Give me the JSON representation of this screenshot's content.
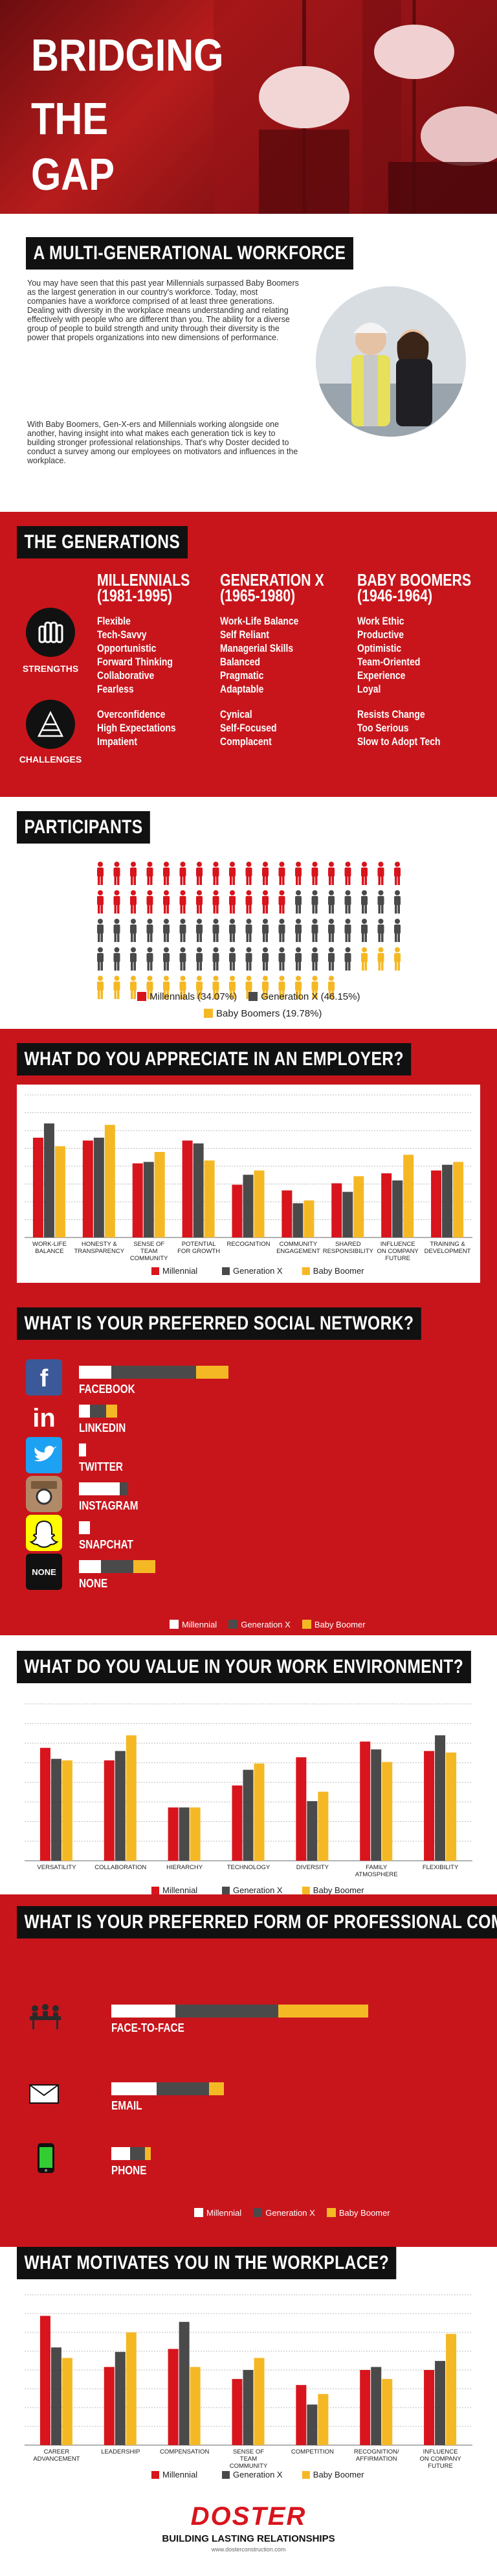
{
  "hero": {
    "title_lines": [
      "BRIDGING",
      "THE",
      "GAP"
    ]
  },
  "intro": {
    "heading": "A MULTI-GENERATIONAL WORKFORCE",
    "p1": "You may have seen that this past year Millennials surpassed Baby Boomers as the largest generation in our country's workforce. Today, most companies have a workforce comprised of at least three generations. Dealing with diversity in the workplace means understanding and relating effectively with people who are different than you. The ability for a diverse group of people to build strength and unity through their diversity is the power that propels organizations into new dimensions of performance.",
    "p2": "With Baby Boomers, Gen-X-ers and Millennials working alongside one another, having insight into what makes each generation tick is key to building stronger professional relationships. That's why Doster decided to conduct a survey among our employees on motivators and influences in the workplace."
  },
  "generations": {
    "heading": "THE GENERATIONS",
    "strengths_label": "STRENGTHS",
    "challenges_label": "CHALLENGES",
    "columns": [
      {
        "name": "MILLENNIALS",
        "years": "(1981-1995)",
        "strengths": [
          "Flexible",
          "Tech-Savvy",
          "Opportunistic",
          "Forward Thinking",
          "Collaborative",
          "Fearless"
        ],
        "challenges": [
          "Overconfidence",
          "High Expectations",
          "Impatient"
        ]
      },
      {
        "name": "GENERATION X",
        "years": "(1965-1980)",
        "strengths": [
          "Work-Life Balance",
          "Self Reliant",
          "Managerial Skills",
          "Balanced",
          "Pragmatic",
          "Adaptable"
        ],
        "challenges": [
          "Cynical",
          "Self-Focused",
          "Complacent"
        ]
      },
      {
        "name": "BABY BOOMERS",
        "years": "(1946-1964)",
        "strengths": [
          "Work Ethic",
          "Productive",
          "Optimistic",
          "Team-Oriented",
          "Experience",
          "Loyal"
        ],
        "challenges": [
          "Resists Change",
          "Too Serious",
          "Slow to Adopt Tech"
        ]
      }
    ]
  },
  "colors": {
    "millennial": "#d8141c",
    "genx": "#4a4a4a",
    "boomer": "#f5b825",
    "red": "#c8151c",
    "dark": "#111111"
  },
  "participants": {
    "heading": "PARTICIPANTS",
    "legend": [
      "Millennials (34.07%)",
      "Generation X (46.15%)",
      "Baby Boomers (19.78%)"
    ],
    "counts": {
      "millennial": 31,
      "genx": 42,
      "boomer": 18
    }
  },
  "legend_labels": {
    "millennial": "Millennial",
    "genx": "Generation X",
    "boomer": "Baby Boomer"
  },
  "charts": {
    "appreciate": {
      "heading": "WHAT DO YOU APPRECIATE IN AN EMPLOYER?"
    },
    "social": {
      "heading": "WHAT IS YOUR PREFERRED SOCIAL NETWORK?"
    },
    "environment": {
      "heading": "WHAT DO YOU VALUE IN YOUR WORK ENVIRONMENT?"
    },
    "communication": {
      "heading": "WHAT IS YOUR PREFERRED FORM OF PROFESSIONAL COMMUNICATION?"
    },
    "motivates": {
      "heading": "WHAT MOTIVATES YOU IN THE WORKPLACE?"
    }
  },
  "chart_data": [
    {
      "type": "bar",
      "title": "WHAT DO YOU APPRECIATE IN AN EMPLOYER?",
      "categories": [
        "WORK-LIFE BALANCE",
        "HONESTY & TRANSPARENCY",
        "SENSE OF TEAM COMMUNITY",
        "POTENTIAL FOR GROWTH",
        "RECOGNITION",
        "COMMUNITY ENGAGEMENT",
        "SHARED RESPONSIBILITY",
        "INFLUENCE ON COMPANY FUTURE",
        "TRAINING & DEVELOPMENT"
      ],
      "series": [
        {
          "name": "Millennial",
          "values": [
            70,
            68,
            52,
            68,
            37,
            33,
            38,
            45,
            47
          ]
        },
        {
          "name": "Generation X",
          "values": [
            80,
            70,
            53,
            66,
            44,
            24,
            32,
            40,
            51
          ]
        },
        {
          "name": "Baby Boomer",
          "values": [
            64,
            79,
            60,
            54,
            47,
            26,
            43,
            58,
            53
          ]
        }
      ],
      "ylim": [
        0,
        100
      ],
      "legend": "bottom"
    },
    {
      "type": "bar",
      "title": "WHAT IS YOUR PREFERRED SOCIAL NETWORK?",
      "orientation": "horizontal-stacked",
      "categories": [
        "FACEBOOK",
        "LINKEDIN",
        "TWITTER",
        "INSTAGRAM",
        "SNAPCHAT",
        "NONE"
      ],
      "series": [
        {
          "name": "Millennial",
          "values": [
            24,
            8,
            5,
            30,
            8,
            16
          ]
        },
        {
          "name": "Generation X",
          "values": [
            62,
            12,
            0,
            6,
            0,
            24
          ]
        },
        {
          "name": "Baby Boomer",
          "values": [
            24,
            8,
            0,
            0,
            0,
            16
          ]
        }
      ],
      "legend": "bottom"
    },
    {
      "type": "bar",
      "title": "WHAT DO YOU VALUE IN YOUR WORK ENVIRONMENT?",
      "categories": [
        "VERSATILITY",
        "COLLABORATION",
        "HIERARCHY",
        "TECHNOLOGY",
        "DIVERSITY",
        "FAMILY ATMOSPHERE",
        "FLEXIBILITY"
      ],
      "series": [
        {
          "name": "Millennial",
          "values": [
            72,
            64,
            34,
            48,
            66,
            76,
            70
          ]
        },
        {
          "name": "Generation X",
          "values": [
            65,
            70,
            34,
            58,
            38,
            71,
            80
          ]
        },
        {
          "name": "Baby Boomer",
          "values": [
            64,
            80,
            34,
            62,
            44,
            63,
            69
          ]
        }
      ],
      "ylim": [
        0,
        100
      ],
      "legend": "bottom"
    },
    {
      "type": "bar",
      "title": "WHAT IS YOUR PREFERRED FORM OF PROFESSIONAL COMMUNICATION?",
      "orientation": "horizontal-stacked",
      "categories": [
        "FACE-TO-FACE",
        "EMAIL",
        "PHONE"
      ],
      "series": [
        {
          "name": "Millennial",
          "values": [
            34,
            24,
            10
          ]
        },
        {
          "name": "Generation X",
          "values": [
            55,
            28,
            8
          ]
        },
        {
          "name": "Baby Boomer",
          "values": [
            48,
            8,
            3
          ]
        }
      ],
      "legend": "bottom"
    },
    {
      "type": "bar",
      "title": "WHAT MOTIVATES YOU IN THE WORKPLACE?",
      "categories": [
        "CAREER ADVANCEMENT",
        "LEADERSHIP",
        "COMPENSATION",
        "SENSE OF TEAM COMMUNITY",
        "COMPETITION",
        "RECOGNITION/ AFFIRMATION",
        "INFLUENCE ON COMPANY FUTURE"
      ],
      "series": [
        {
          "name": "Millennial",
          "values": [
            86,
            52,
            64,
            44,
            40,
            50,
            50
          ]
        },
        {
          "name": "Generation X",
          "values": [
            65,
            62,
            82,
            50,
            27,
            52,
            56
          ]
        },
        {
          "name": "Baby Boomer",
          "values": [
            58,
            75,
            52,
            58,
            34,
            44,
            74
          ]
        }
      ],
      "ylim": [
        0,
        100
      ],
      "legend": "bottom"
    }
  ],
  "footer": {
    "brand": "DOSTER",
    "tagline": "BUILDING LASTING RELATIONSHIPS",
    "url": "www.dosterconstruction.com"
  }
}
